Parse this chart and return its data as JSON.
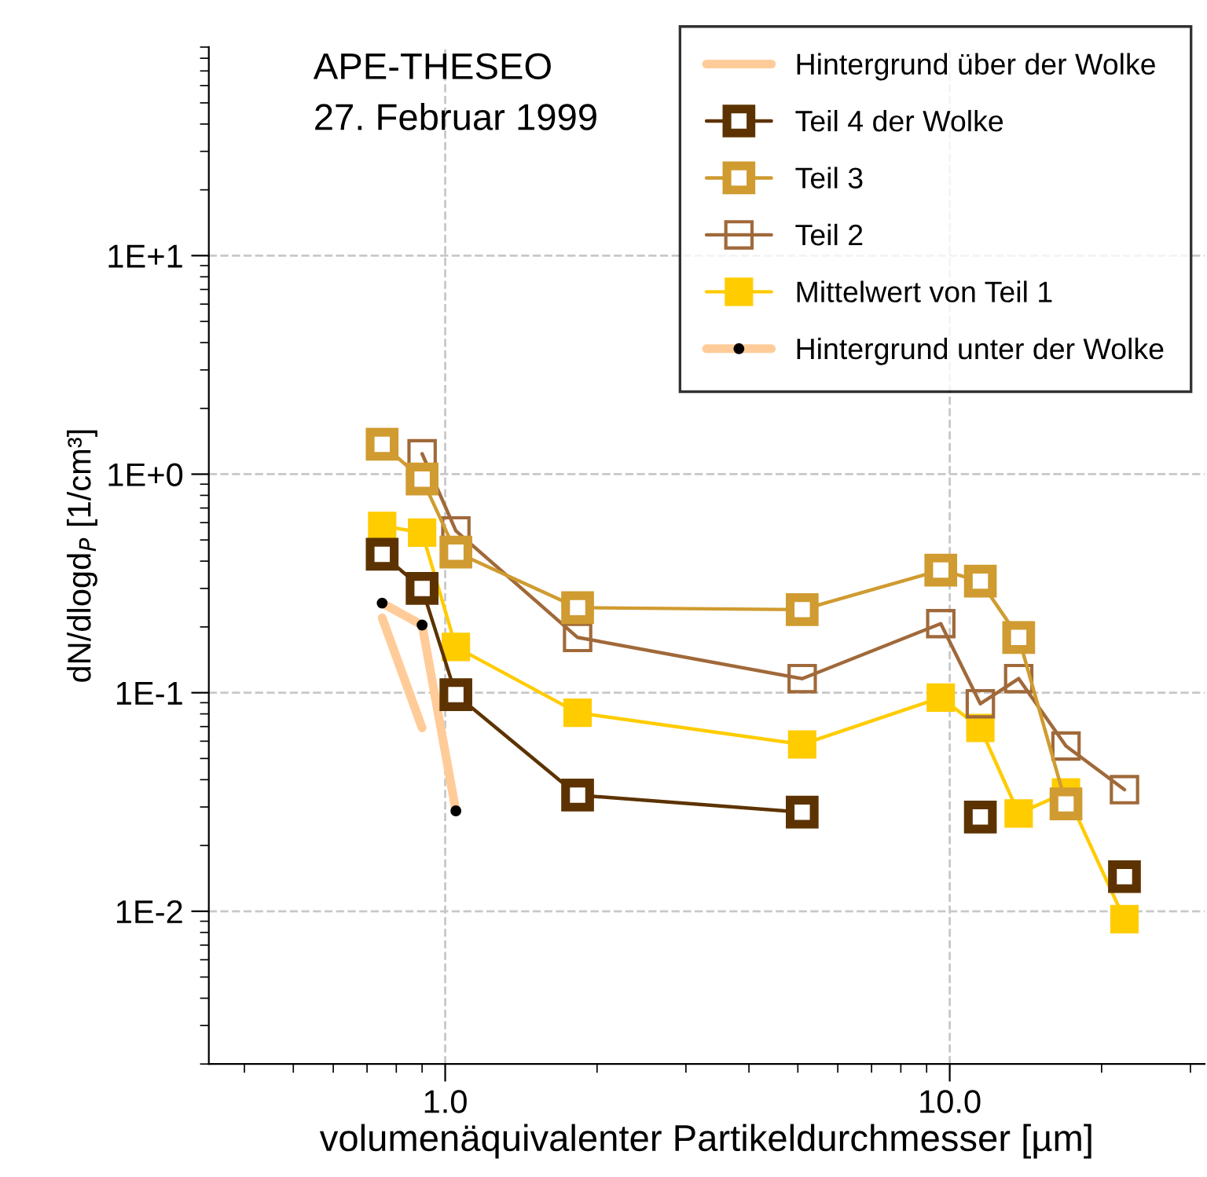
{
  "chart_data": {
    "type": "line",
    "title": "APE-THESEO",
    "subtitle": "27. Februar 1999",
    "xlabel": "volumenäquivalenter Partikeldurchmesser [µm]",
    "ylabel": "dN/dlogd$_{P}$ [1/cm³]",
    "log": "xy",
    "grid": true,
    "legend": "top right",
    "xlim": [
      0.34,
      32
    ],
    "ylim": [
      0.002,
      90
    ],
    "xticks": [
      {
        "value": 1,
        "label": "1.0"
      },
      {
        "value": 10,
        "label": "10.0"
      }
    ],
    "yticks": [
      {
        "value": 0.01,
        "label": "1E-2"
      },
      {
        "value": 0.1,
        "label": "1E-1"
      },
      {
        "value": 1,
        "label": "1E+0"
      },
      {
        "value": 10,
        "label": "1E+1"
      }
    ],
    "x": [
      0.75,
      0.9,
      1.05,
      1.83,
      5.1,
      9.6,
      11.5,
      13.7,
      17,
      22.2
    ],
    "series": [
      {
        "name": "Hintergrund über der Wolke",
        "color": "#ffcc99",
        "marker": "none",
        "x": [
          0.75,
          0.9
        ],
        "values": [
          0.22,
          0.069
        ]
      },
      {
        "name": "Teil 4 der Wolke",
        "color": "#5c3300",
        "marker": "square",
        "values": [
          0.43,
          0.3,
          0.098,
          0.034,
          0.0284,
          null,
          0.027,
          null,
          null,
          0.0144
        ]
      },
      {
        "name": "Teil 3",
        "color": "#d09b30",
        "marker": "square",
        "values": [
          1.37,
          0.95,
          0.44,
          0.245,
          0.24,
          0.364,
          0.324,
          0.179,
          0.031,
          null
        ]
      },
      {
        "name": "Teil 2",
        "color": "#a0693a",
        "marker": "square",
        "values": [
          null,
          1.24,
          0.55,
          0.179,
          0.116,
          0.207,
          0.089,
          0.116,
          0.057,
          0.036
        ]
      },
      {
        "name": "Mittelwert von Teil 1",
        "color": "#ffcc00",
        "marker": "square",
        "values": [
          0.58,
          0.54,
          0.162,
          0.081,
          0.058,
          0.095,
          0.069,
          0.028,
          0.035,
          0.0092
        ]
      },
      {
        "name": "Hintergrund unter der Wolke",
        "color": "#ffcc99",
        "marker": "circle",
        "x": [
          0.75,
          0.9,
          1.05
        ],
        "values": [
          0.257,
          0.204,
          0.0288
        ]
      }
    ]
  }
}
